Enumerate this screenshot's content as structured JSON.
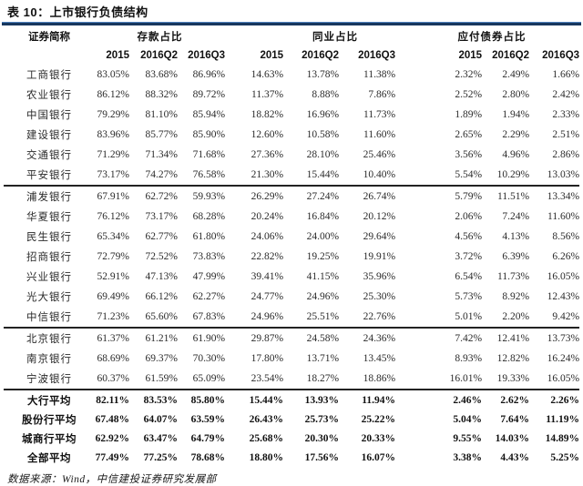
{
  "title": "表 10：上市银行负债结构",
  "source_note": "数据来源：Wind，中信建投证券研究发展部",
  "colors": {
    "rule_dark": "#17375E",
    "rule_light": "#4f81bd",
    "group_separator": "#222222",
    "text": "#262626"
  },
  "table": {
    "label_header": "证券简称",
    "groups": [
      {
        "label": "存款占比",
        "years": [
          "2015",
          "2016Q2",
          "2016Q3"
        ]
      },
      {
        "label": "同业占比",
        "years": [
          "2015",
          "2016Q2",
          "2016Q3"
        ]
      },
      {
        "label": "应付债券占比",
        "years": [
          "2015",
          "2016Q2",
          "2016Q3"
        ]
      }
    ],
    "rows": [
      {
        "name": "工商银行",
        "values": [
          "83.05%",
          "83.68%",
          "86.96%",
          "14.63%",
          "13.78%",
          "11.38%",
          "2.32%",
          "2.49%",
          "1.66%"
        ],
        "bold": false,
        "sep": false
      },
      {
        "name": "农业银行",
        "values": [
          "86.12%",
          "88.32%",
          "89.72%",
          "11.37%",
          "8.88%",
          "7.86%",
          "2.52%",
          "2.80%",
          "2.42%"
        ],
        "bold": false,
        "sep": false
      },
      {
        "name": "中国银行",
        "values": [
          "79.29%",
          "81.10%",
          "85.94%",
          "18.82%",
          "16.96%",
          "11.73%",
          "1.89%",
          "1.94%",
          "2.33%"
        ],
        "bold": false,
        "sep": false
      },
      {
        "name": "建设银行",
        "values": [
          "83.96%",
          "85.77%",
          "85.90%",
          "12.60%",
          "10.58%",
          "11.60%",
          "2.65%",
          "2.29%",
          "2.51%"
        ],
        "bold": false,
        "sep": false
      },
      {
        "name": "交通银行",
        "values": [
          "71.29%",
          "71.34%",
          "71.68%",
          "27.36%",
          "28.10%",
          "25.46%",
          "3.56%",
          "4.96%",
          "2.86%"
        ],
        "bold": false,
        "sep": false
      },
      {
        "name": "平安银行",
        "values": [
          "73.17%",
          "74.27%",
          "76.58%",
          "21.30%",
          "15.44%",
          "10.40%",
          "5.54%",
          "10.29%",
          "13.03%"
        ],
        "bold": false,
        "sep": false
      },
      {
        "name": "浦发银行",
        "values": [
          "67.91%",
          "62.72%",
          "59.93%",
          "26.29%",
          "27.24%",
          "26.74%",
          "5.79%",
          "11.51%",
          "13.34%"
        ],
        "bold": false,
        "sep": true
      },
      {
        "name": "华夏银行",
        "values": [
          "76.12%",
          "73.17%",
          "68.28%",
          "20.24%",
          "16.84%",
          "20.12%",
          "2.06%",
          "7.24%",
          "11.60%"
        ],
        "bold": false,
        "sep": false
      },
      {
        "name": "民生银行",
        "values": [
          "65.34%",
          "62.77%",
          "61.80%",
          "24.06%",
          "24.00%",
          "29.64%",
          "4.56%",
          "4.13%",
          "8.56%"
        ],
        "bold": false,
        "sep": false
      },
      {
        "name": "招商银行",
        "values": [
          "72.79%",
          "72.52%",
          "73.83%",
          "22.82%",
          "19.25%",
          "19.91%",
          "3.72%",
          "6.39%",
          "6.26%"
        ],
        "bold": false,
        "sep": false
      },
      {
        "name": "兴业银行",
        "values": [
          "52.91%",
          "47.13%",
          "47.99%",
          "39.41%",
          "41.15%",
          "35.96%",
          "6.54%",
          "11.73%",
          "16.05%"
        ],
        "bold": false,
        "sep": false
      },
      {
        "name": "光大银行",
        "values": [
          "69.49%",
          "66.12%",
          "62.27%",
          "24.77%",
          "24.96%",
          "25.30%",
          "5.73%",
          "8.92%",
          "12.43%"
        ],
        "bold": false,
        "sep": false
      },
      {
        "name": "中信银行",
        "values": [
          "71.23%",
          "65.60%",
          "67.83%",
          "24.96%",
          "25.51%",
          "22.76%",
          "5.01%",
          "2.20%",
          "9.42%"
        ],
        "bold": false,
        "sep": false
      },
      {
        "name": "北京银行",
        "values": [
          "61.37%",
          "61.21%",
          "61.90%",
          "29.87%",
          "24.58%",
          "24.36%",
          "7.42%",
          "12.41%",
          "13.73%"
        ],
        "bold": false,
        "sep": true
      },
      {
        "name": "南京银行",
        "values": [
          "68.69%",
          "69.37%",
          "70.30%",
          "17.80%",
          "13.71%",
          "13.45%",
          "8.93%",
          "12.82%",
          "16.24%"
        ],
        "bold": false,
        "sep": false
      },
      {
        "name": "宁波银行",
        "values": [
          "60.37%",
          "61.59%",
          "65.09%",
          "23.54%",
          "18.27%",
          "18.86%",
          "16.01%",
          "19.33%",
          "16.05%"
        ],
        "bold": false,
        "sep": false
      },
      {
        "name": "大行平均",
        "values": [
          "82.11%",
          "83.53%",
          "85.80%",
          "15.44%",
          "13.93%",
          "11.94%",
          "2.46%",
          "2.62%",
          "2.26%"
        ],
        "bold": true,
        "sep": true
      },
      {
        "name": "股份行平均",
        "values": [
          "67.48%",
          "64.07%",
          "63.59%",
          "26.43%",
          "25.73%",
          "25.22%",
          "5.04%",
          "7.64%",
          "11.19%"
        ],
        "bold": true,
        "sep": false
      },
      {
        "name": "城商行平均",
        "values": [
          "62.92%",
          "63.47%",
          "64.79%",
          "25.68%",
          "20.30%",
          "20.33%",
          "9.55%",
          "14.03%",
          "14.89%"
        ],
        "bold": true,
        "sep": false
      },
      {
        "name": "全部平均",
        "values": [
          "77.49%",
          "77.25%",
          "78.68%",
          "18.80%",
          "17.56%",
          "16.07%",
          "3.38%",
          "4.43%",
          "5.25%"
        ],
        "bold": true,
        "sep": false
      }
    ]
  }
}
